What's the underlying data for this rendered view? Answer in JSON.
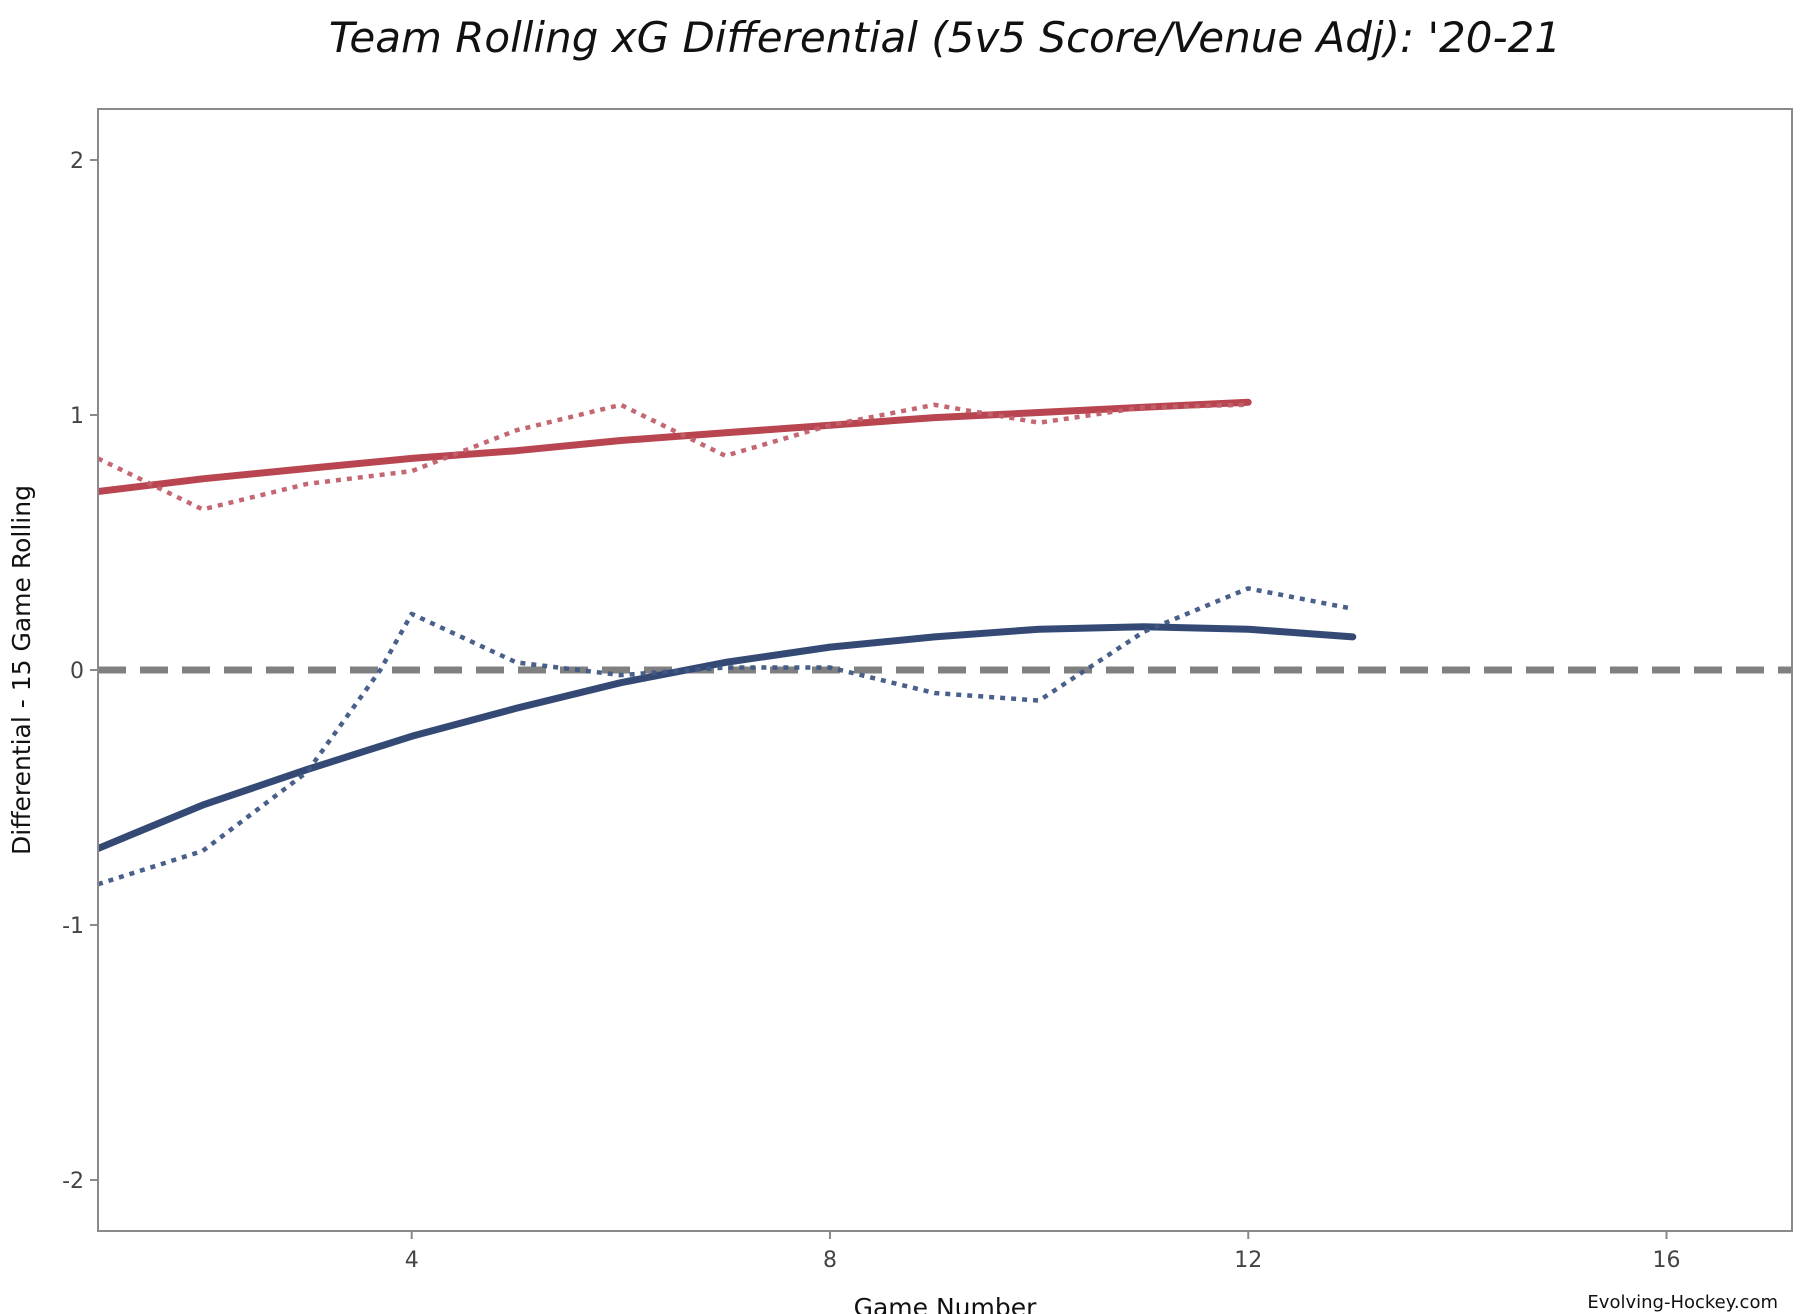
{
  "chart_data": {
    "type": "line",
    "title": "Team Rolling xG Differential (5v5 Score/Venue Adj): '20-21",
    "xlabel": "Game Number",
    "ylabel": "Differential - 15 Game Rolling",
    "xlim": [
      1,
      17.2
    ],
    "ylim": [
      -2.2,
      2.2
    ],
    "xticks": [
      4,
      8,
      12,
      16
    ],
    "yticks": [
      -2,
      -1,
      0,
      1,
      2
    ],
    "reference_line": {
      "y": 0,
      "style": "dashed",
      "color": "#808080"
    },
    "grid": false,
    "source": "Evolving-Hockey.com",
    "series": [
      {
        "style": "solid",
        "color": "#b84550",
        "x": [
          1,
          2,
          3,
          4,
          5,
          6,
          7,
          8,
          9,
          10,
          11,
          12
        ],
        "y": [
          0.7,
          0.75,
          0.79,
          0.83,
          0.86,
          0.9,
          0.93,
          0.96,
          0.99,
          1.01,
          1.03,
          1.05
        ]
      },
      {
        "style": "dotted",
        "color": "#c0606b",
        "x": [
          1,
          2,
          3,
          4,
          5,
          6,
          7,
          8,
          9,
          10,
          11,
          12
        ],
        "y": [
          0.83,
          0.63,
          0.73,
          0.78,
          0.94,
          1.04,
          0.84,
          0.96,
          1.04,
          0.97,
          1.03,
          1.04
        ]
      },
      {
        "style": "solid",
        "color": "#344a75",
        "x": [
          1,
          2,
          3,
          4,
          5,
          6,
          7,
          8,
          9,
          10,
          11,
          12,
          13
        ],
        "y": [
          -0.7,
          -0.53,
          -0.39,
          -0.26,
          -0.15,
          -0.05,
          0.03,
          0.09,
          0.13,
          0.16,
          0.17,
          0.16,
          0.13
        ]
      },
      {
        "style": "dotted",
        "color": "#3f5785",
        "x": [
          1,
          2,
          3,
          3.7,
          4,
          5,
          6,
          7,
          8,
          9,
          10,
          11,
          12,
          13
        ],
        "y": [
          -0.84,
          -0.71,
          -0.4,
          0.0,
          0.22,
          0.03,
          -0.02,
          0.01,
          0.01,
          -0.09,
          -0.12,
          0.15,
          0.32,
          0.24
        ]
      }
    ]
  }
}
